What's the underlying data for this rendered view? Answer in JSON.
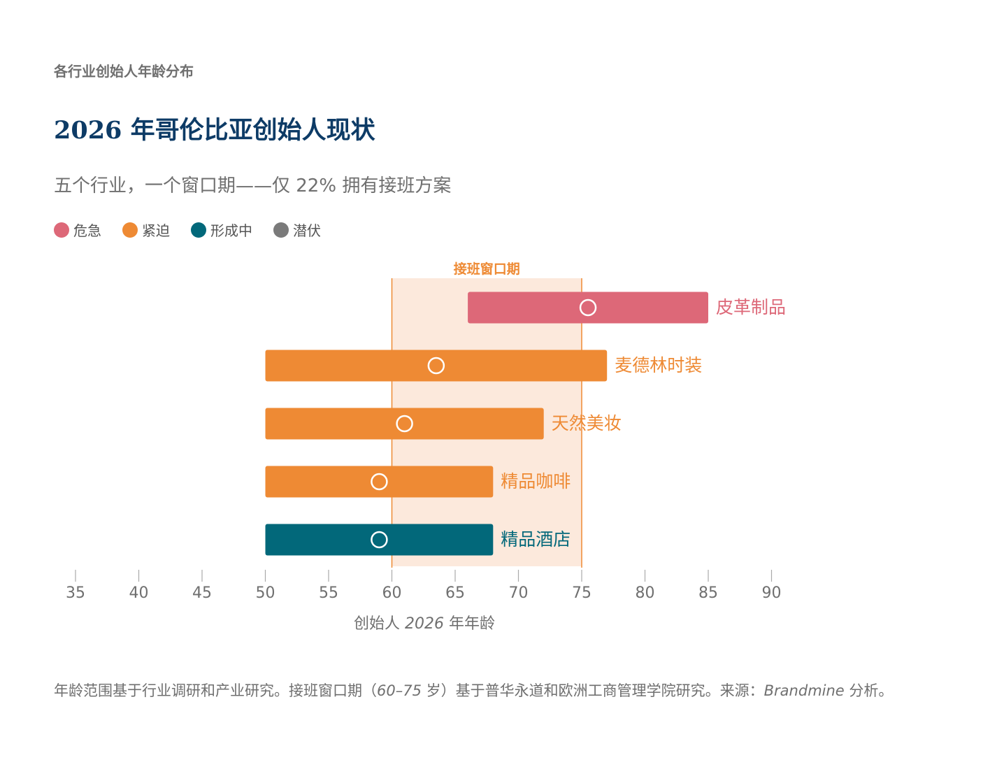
{
  "header": {
    "eyebrow": "各行业创始人年龄分布",
    "title": "2026 年哥伦比亚创始人现状",
    "subtitle": "五个行业，一个窗口期——仅 22% 拥有接班方案"
  },
  "legend": [
    {
      "label": "危急",
      "color": "#dd6878"
    },
    {
      "label": "紧迫",
      "color": "#ee8a34"
    },
    {
      "label": "形成中",
      "color": "#02687a"
    },
    {
      "label": "潜伏",
      "color": "#7a7a7a"
    }
  ],
  "footnote": {
    "part1": "年龄范围基于行业调研和产业研究。接班窗口期（",
    "part2": "60–75",
    "part3": " 岁）基于普华永道和欧洲工商管理学院研究。来源：",
    "part4": "Brandmine",
    "part5": " 分析。"
  },
  "chart_data": {
    "type": "range-bar",
    "xlabel_prefix": "创始人 ",
    "xlabel_italic": "2026",
    "xlabel_suffix": " 年年龄",
    "xlim": [
      35,
      90
    ],
    "xticks": [
      35,
      40,
      45,
      50,
      55,
      60,
      65,
      70,
      75,
      80,
      85,
      90
    ],
    "grid": false,
    "window": {
      "label": "接班窗口期",
      "start": 60,
      "end": 75,
      "fill": "#fce9dc",
      "line": "#ee8a34"
    },
    "series": [
      {
        "name": "皮革制品",
        "min": 66,
        "max": 85,
        "marker": 75.5,
        "status": "危急",
        "color": "#dd6878"
      },
      {
        "name": "麦德林时装",
        "min": 50,
        "max": 77,
        "marker": 63.5,
        "status": "紧迫",
        "color": "#ee8a34"
      },
      {
        "name": "天然美妆",
        "min": 50,
        "max": 72,
        "marker": 61,
        "status": "紧迫",
        "color": "#ee8a34"
      },
      {
        "name": "精品咖啡",
        "min": 50,
        "max": 68,
        "marker": 59,
        "status": "紧迫",
        "color": "#ee8a34"
      },
      {
        "name": "精品酒店",
        "min": 50,
        "max": 68,
        "marker": 59,
        "status": "形成中",
        "color": "#02687a"
      }
    ]
  }
}
